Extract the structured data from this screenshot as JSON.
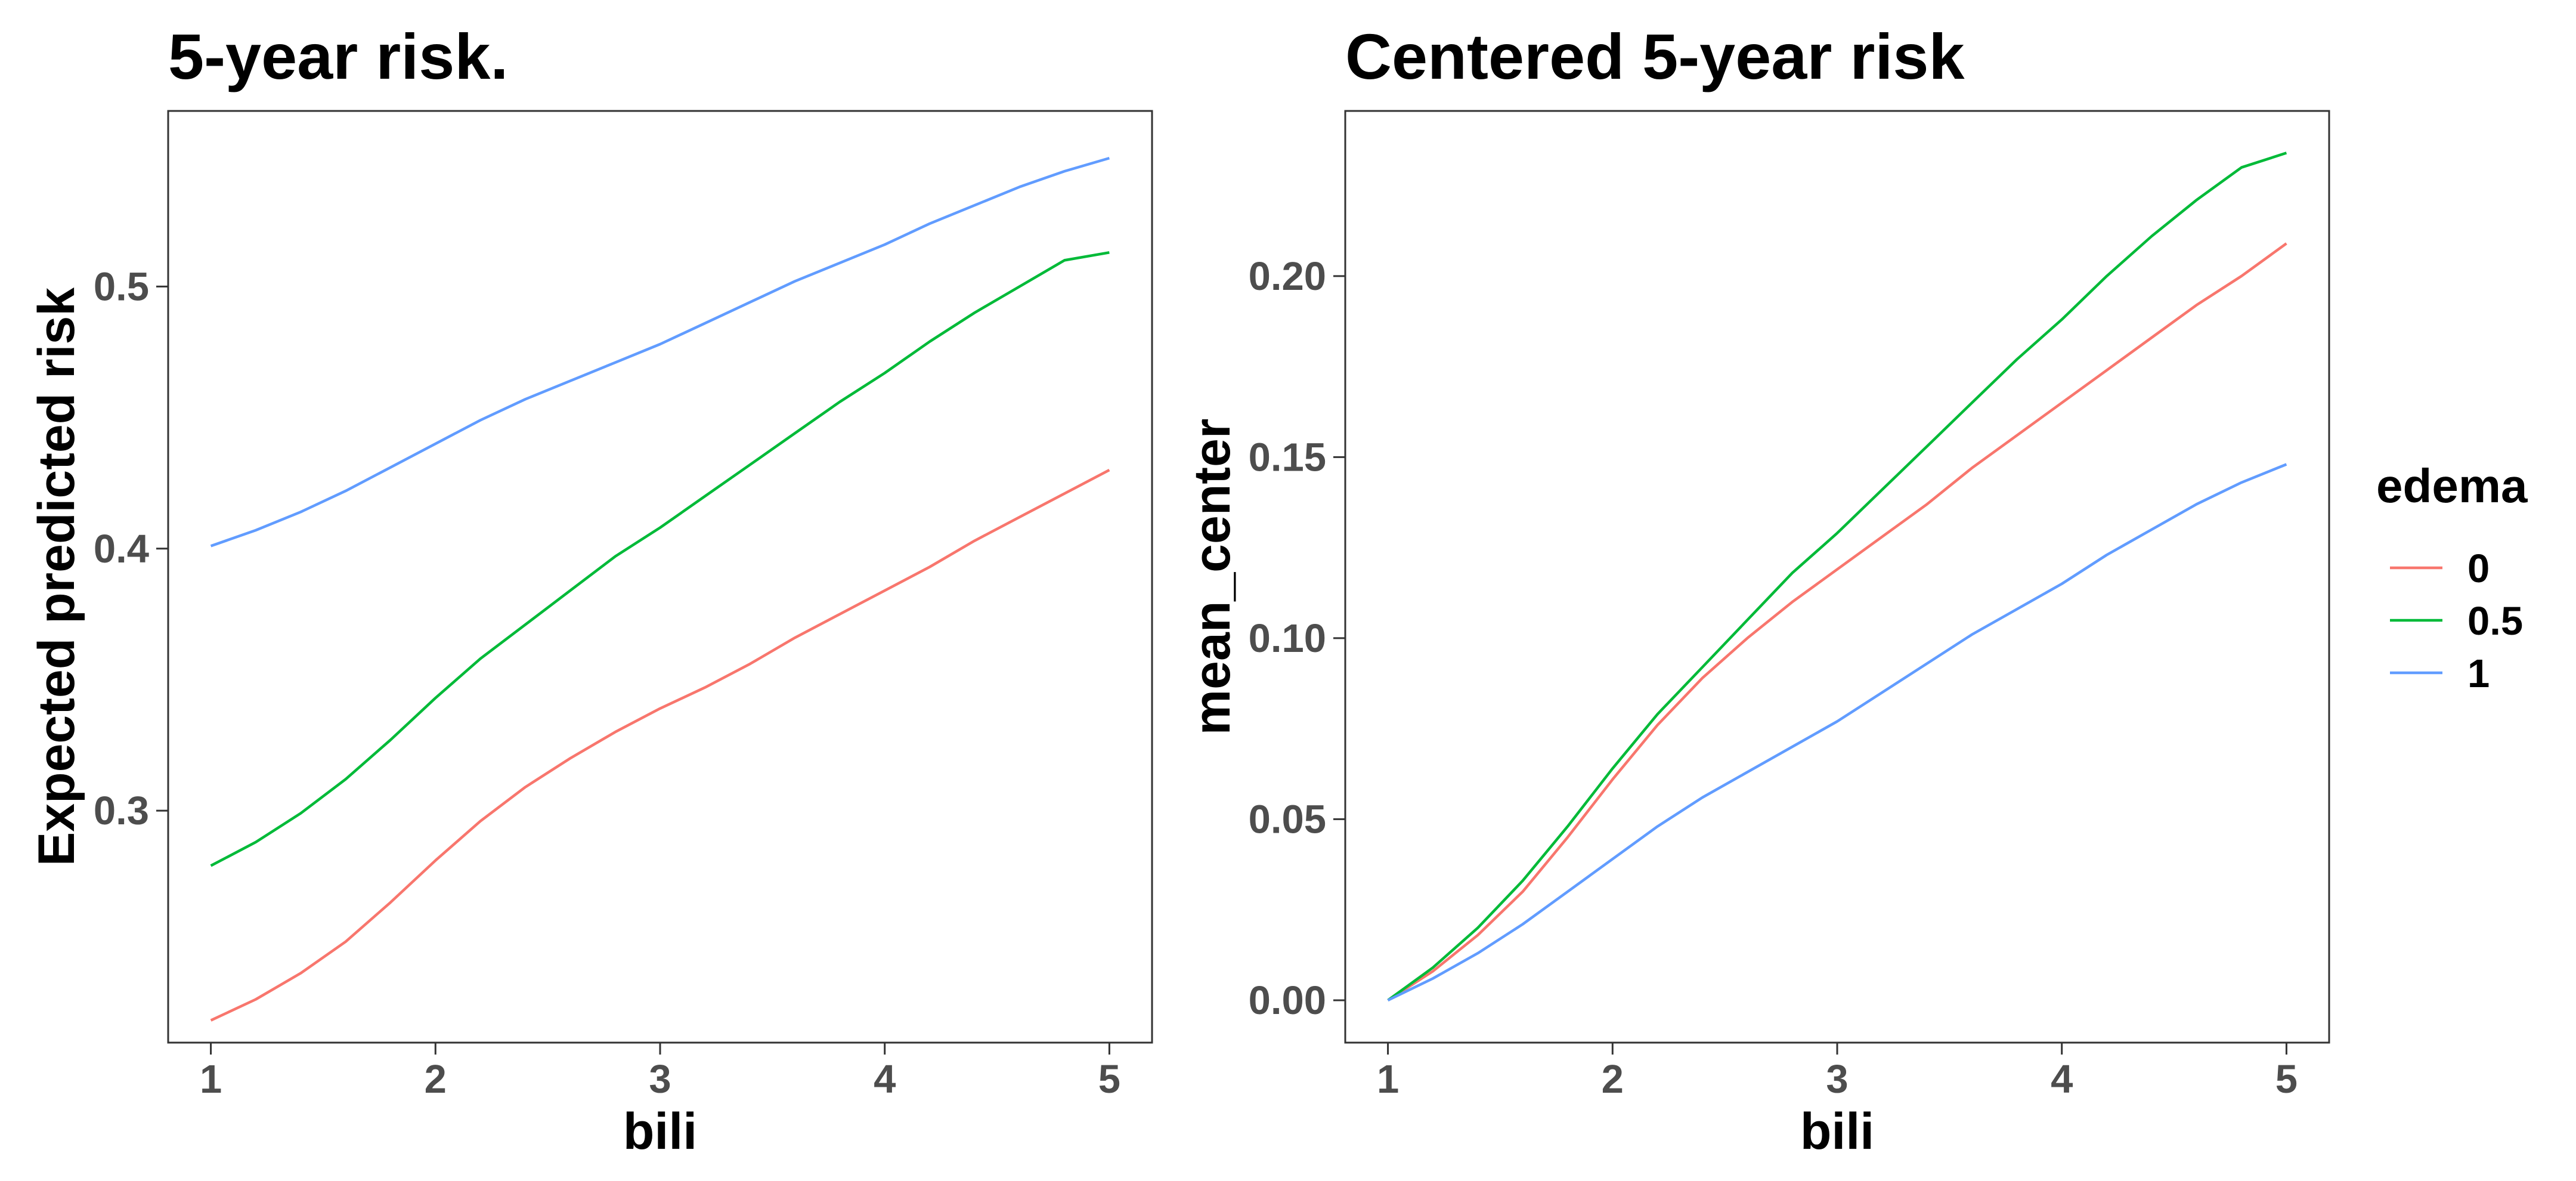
{
  "chart_data": [
    {
      "type": "line",
      "title": "5-year risk.",
      "xlabel": "bili",
      "ylabel": "Expected predicted risk",
      "xlim": [
        0.81,
        5.19
      ],
      "ylim": [
        0.2115,
        0.567
      ],
      "x_ticks": [
        1,
        2,
        3,
        4,
        5
      ],
      "y_ticks": [
        0.3,
        0.4,
        0.5
      ],
      "y_tick_labels": [
        "0.3",
        "0.4",
        "0.5"
      ],
      "grid": false,
      "x": [
        1.0,
        1.2,
        1.4,
        1.6,
        1.8,
        2.0,
        2.2,
        2.4,
        2.6,
        2.8,
        3.0,
        3.2,
        3.4,
        3.6,
        3.8,
        4.0,
        4.2,
        4.4,
        4.6,
        4.8,
        5.0
      ],
      "series": [
        {
          "name": "0",
          "color": "#F8766D",
          "values": [
            0.22,
            0.228,
            0.238,
            0.25,
            0.265,
            0.281,
            0.296,
            0.309,
            0.32,
            0.33,
            0.339,
            0.347,
            0.356,
            0.366,
            0.375,
            0.384,
            0.393,
            0.403,
            0.412,
            0.421,
            0.43
          ]
        },
        {
          "name": "0.5",
          "color": "#00BA38",
          "values": [
            0.279,
            0.288,
            0.299,
            0.312,
            0.327,
            0.343,
            0.358,
            0.371,
            0.384,
            0.397,
            0.408,
            0.42,
            0.432,
            0.444,
            0.456,
            0.467,
            0.479,
            0.49,
            0.5,
            0.51,
            0.513
          ]
        },
        {
          "name": "1",
          "color": "#619CFF",
          "values": [
            0.401,
            0.407,
            0.414,
            0.422,
            0.431,
            0.44,
            0.449,
            0.457,
            0.464,
            0.471,
            0.478,
            0.486,
            0.494,
            0.502,
            0.509,
            0.516,
            0.524,
            0.531,
            0.538,
            0.544,
            0.549
          ]
        }
      ]
    },
    {
      "type": "line",
      "title": "Centered 5-year risk",
      "xlabel": "bili",
      "ylabel": "mean_center",
      "xlim": [
        0.81,
        5.19
      ],
      "ylim": [
        -0.0117,
        0.2456
      ],
      "x_ticks": [
        1,
        2,
        3,
        4,
        5
      ],
      "y_ticks": [
        0.0,
        0.05,
        0.1,
        0.15,
        0.2
      ],
      "y_tick_labels": [
        "0.00",
        "0.05",
        "0.10",
        "0.15",
        "0.20"
      ],
      "grid": false,
      "x": [
        1.0,
        1.2,
        1.4,
        1.6,
        1.8,
        2.0,
        2.2,
        2.4,
        2.6,
        2.8,
        3.0,
        3.2,
        3.4,
        3.6,
        3.8,
        4.0,
        4.2,
        4.4,
        4.6,
        4.8,
        5.0
      ],
      "series": [
        {
          "name": "0",
          "color": "#F8766D",
          "values": [
            0.0,
            0.008,
            0.018,
            0.03,
            0.045,
            0.061,
            0.076,
            0.089,
            0.1,
            0.11,
            0.119,
            0.128,
            0.137,
            0.147,
            0.156,
            0.165,
            0.174,
            0.183,
            0.192,
            0.2,
            0.209
          ]
        },
        {
          "name": "0.5",
          "color": "#00BA38",
          "values": [
            0.0,
            0.009,
            0.02,
            0.033,
            0.048,
            0.064,
            0.079,
            0.092,
            0.105,
            0.118,
            0.129,
            0.141,
            0.153,
            0.165,
            0.177,
            0.188,
            0.2,
            0.211,
            0.221,
            0.23,
            0.234
          ]
        },
        {
          "name": "1",
          "color": "#619CFF",
          "values": [
            0.0,
            0.006,
            0.013,
            0.021,
            0.03,
            0.039,
            0.048,
            0.056,
            0.063,
            0.07,
            0.077,
            0.085,
            0.093,
            0.101,
            0.108,
            0.115,
            0.123,
            0.13,
            0.137,
            0.143,
            0.148
          ]
        }
      ]
    }
  ],
  "legend": {
    "title": "edema",
    "placement": "right",
    "items": [
      {
        "label": "0",
        "color": "#F8766D"
      },
      {
        "label": "0.5",
        "color": "#00BA38"
      },
      {
        "label": "1",
        "color": "#619CFF"
      }
    ]
  }
}
